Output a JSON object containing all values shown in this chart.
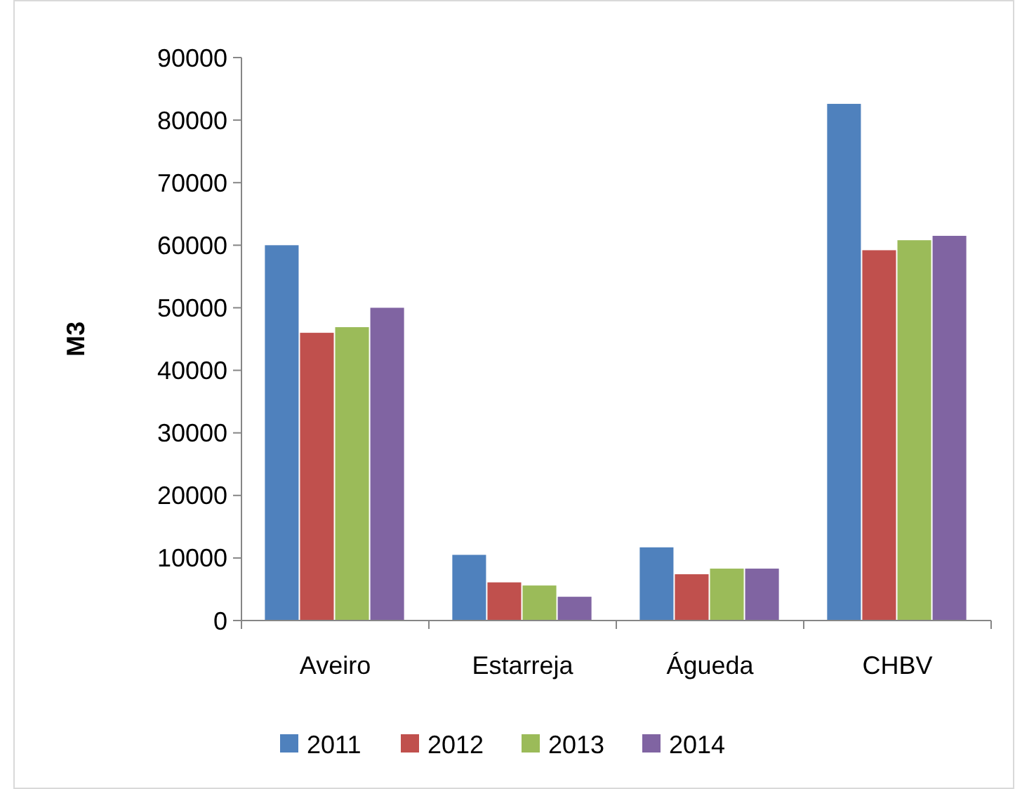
{
  "chart_data": {
    "type": "bar",
    "ylabel": "M3",
    "categories": [
      "Aveiro",
      "Estarreja",
      "Águeda",
      "CHBV"
    ],
    "series": [
      {
        "name": "2011",
        "color": "#4f81bd",
        "values": [
          60000,
          10500,
          11700,
          82600
        ]
      },
      {
        "name": "2012",
        "color": "#c0504d",
        "values": [
          46000,
          6100,
          7400,
          59200
        ]
      },
      {
        "name": "2013",
        "color": "#9bbb59",
        "values": [
          46900,
          5600,
          8300,
          60800
        ]
      },
      {
        "name": "2014",
        "color": "#8064a2",
        "values": [
          50000,
          3800,
          8300,
          61500
        ]
      }
    ],
    "ylim": [
      0,
      90000
    ],
    "yticks": [
      0,
      10000,
      20000,
      30000,
      40000,
      50000,
      60000,
      70000,
      80000,
      90000
    ],
    "grid": false,
    "legend": "bottom"
  }
}
